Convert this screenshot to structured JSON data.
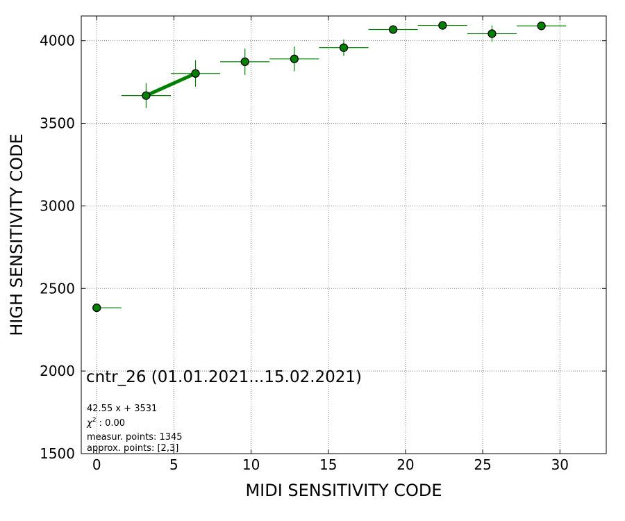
{
  "chart_data": {
    "type": "scatter",
    "xlabel": "MIDI SENSITIVITY CODE",
    "ylabel": "HIGH SENSITIVITY CODE",
    "xlim": [
      -1,
      33
    ],
    "ylim": [
      1500,
      4150
    ],
    "xticks": [
      0,
      5,
      10,
      15,
      20,
      25,
      30
    ],
    "yticks": [
      1500,
      2000,
      2500,
      3000,
      3500,
      4000
    ],
    "grid": true,
    "marker_color": "#008000",
    "fit_line_color": "#008000",
    "points": [
      {
        "x": 0.0,
        "y": 2383,
        "xerr": [
          0.0,
          1.6
        ],
        "yerr": 0
      },
      {
        "x": 3.2,
        "y": 3668,
        "xerr": [
          1.6,
          1.6
        ],
        "yerr": 75
      },
      {
        "x": 6.4,
        "y": 3802,
        "xerr": [
          1.6,
          1.6
        ],
        "yerr": 80
      },
      {
        "x": 9.6,
        "y": 3873,
        "xerr": [
          1.6,
          1.6
        ],
        "yerr": 80
      },
      {
        "x": 12.8,
        "y": 3890,
        "xerr": [
          1.6,
          1.6
        ],
        "yerr": 75
      },
      {
        "x": 16.0,
        "y": 3958,
        "xerr": [
          1.6,
          1.6
        ],
        "yerr": 50
      },
      {
        "x": 19.2,
        "y": 4068,
        "xerr": [
          1.6,
          1.6
        ],
        "yerr": 0
      },
      {
        "x": 22.4,
        "y": 4093,
        "xerr": [
          1.6,
          1.6
        ],
        "yerr": 0
      },
      {
        "x": 25.6,
        "y": 4043,
        "xerr": [
          1.6,
          1.6
        ],
        "yerr": 50
      },
      {
        "x": 28.8,
        "y": 4090,
        "xerr": [
          1.6,
          1.6
        ],
        "yerr": 0
      }
    ],
    "fit_line": {
      "x": [
        3.2,
        6.4
      ],
      "y": [
        3668,
        3802
      ]
    },
    "annotations": {
      "title": "cntr_26 (01.01.2021...15.02.2021)",
      "equation": "42.55 x + 3531",
      "chi_symbol": "χ",
      "chi_exp": "2",
      "chi_value": " : 0.00",
      "measured": "measur. points: 1345",
      "approx": "approx. points: [2,3]"
    }
  }
}
